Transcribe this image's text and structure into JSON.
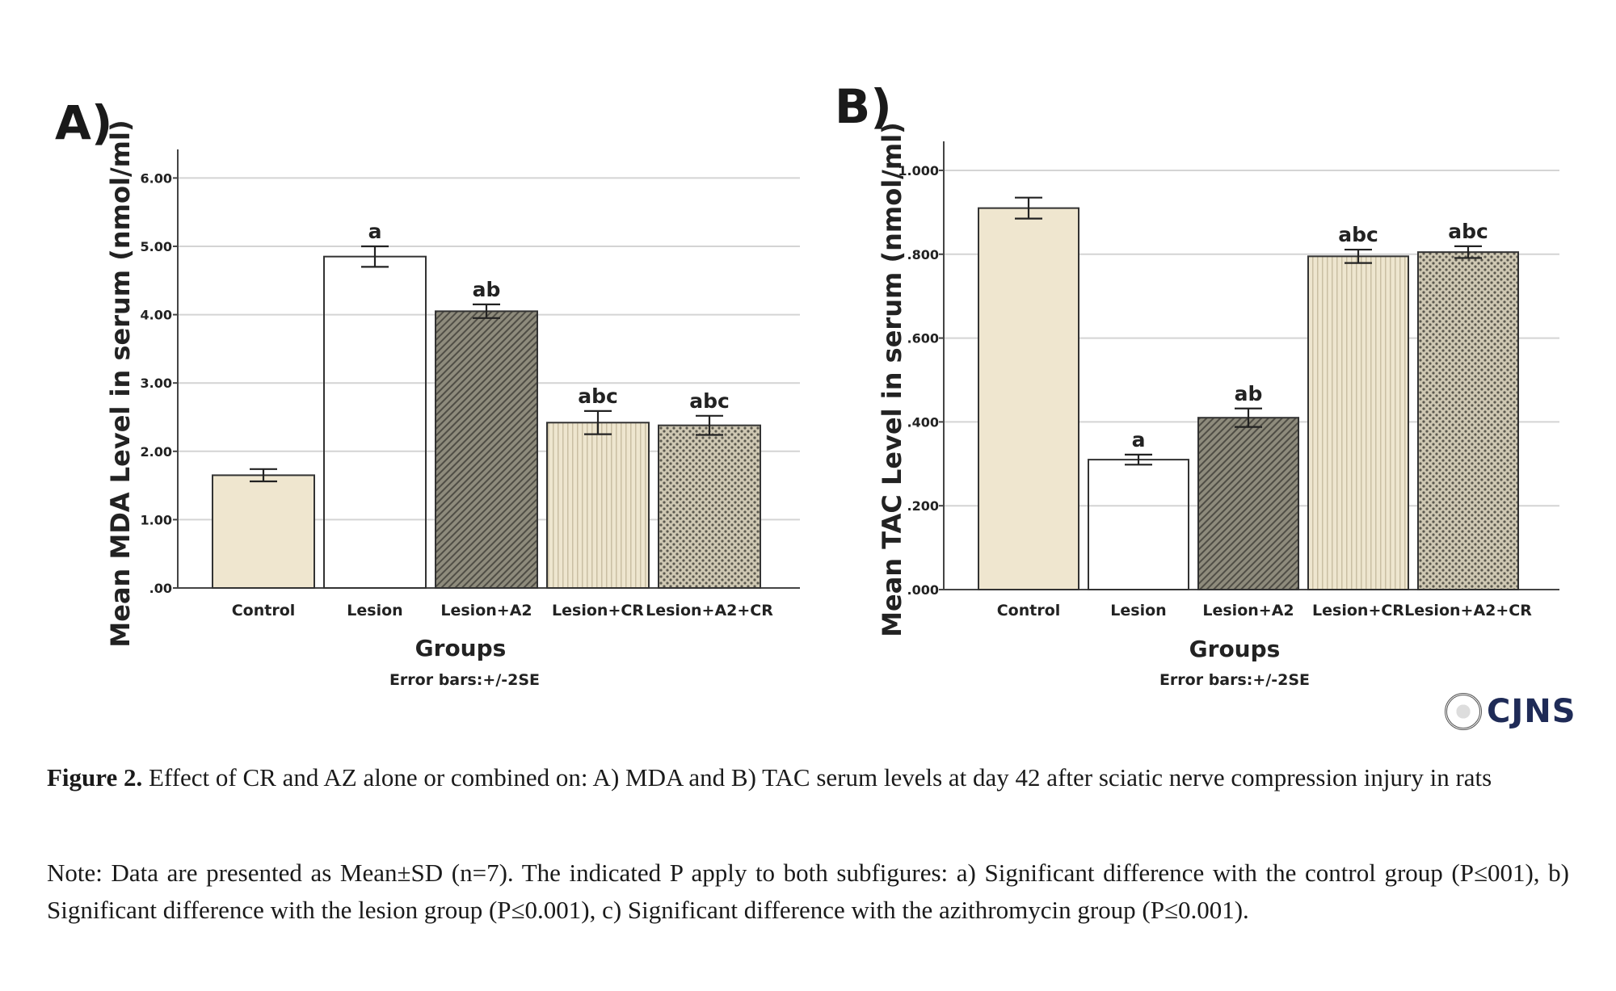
{
  "chart_data": [
    {
      "type": "bar",
      "panel_label": "A)",
      "categories": [
        "Control",
        "Lesion",
        "Lesion+A2",
        "Lesion+CR",
        "Lesion+A2+CR"
      ],
      "values": [
        1.65,
        4.85,
        4.05,
        2.42,
        2.38
      ],
      "errors": [
        0.09,
        0.15,
        0.1,
        0.17,
        0.14
      ],
      "significance": [
        "",
        "a",
        "ab",
        "abc",
        "abc"
      ],
      "patterns": [
        "plain",
        "dark-check",
        "diag",
        "vstripe",
        "dots"
      ],
      "fill_colors": [
        "#efe6cf",
        "#3a3d44",
        "#8a8778",
        "#ece3cc",
        "#b8b09c"
      ],
      "yticks": [
        ".00",
        "1.00",
        "2.00",
        "3.00",
        "4.00",
        "5.00",
        "6.00"
      ],
      "ylim": [
        0,
        6.3
      ],
      "ylabel": "Mean MDA Level in serum (nmol/ml)",
      "xlabel": "Groups",
      "note": "Error bars:+/-2SE",
      "grid": true
    },
    {
      "type": "bar",
      "panel_label": "B)",
      "categories": [
        "Control",
        "Lesion",
        "Lesion+A2",
        "Lesion+CR",
        "Lesion+A2+CR"
      ],
      "values": [
        0.91,
        0.31,
        0.41,
        0.795,
        0.805
      ],
      "errors": [
        0.025,
        0.012,
        0.022,
        0.016,
        0.014
      ],
      "significance": [
        "",
        "a",
        "ab",
        "abc",
        "abc"
      ],
      "patterns": [
        "plain",
        "dark-check",
        "diag",
        "vstripe",
        "dots"
      ],
      "fill_colors": [
        "#efe6cf",
        "#3a3d44",
        "#8a8778",
        "#ece3cc",
        "#b8b09c"
      ],
      "yticks": [
        ".000",
        ".200",
        ".400",
        ".600",
        ".800",
        "1.000"
      ],
      "ylim": [
        0,
        1.05
      ],
      "ylabel": "Mean TAC Level in serum (nmol/ml)",
      "xlabel": "Groups",
      "note": "Error bars:+/-2SE",
      "grid": true
    }
  ],
  "logo": {
    "text": "CJNS"
  },
  "caption": {
    "figure_label": "Figure 2.",
    "figure_text": "Effect of CR and AZ alone or combined on: A) MDA and B) TAC serum levels at day 42 after sciatic nerve compression injury in rats",
    "note": "Note: Data are presented as Mean±SD (n=7). The indicated P apply to both subfigures: a) Significant difference with the control group (P≤001), b) Significant difference with the lesion group (P≤0.001), c) Significant difference with the azithromycin group (P≤0.001)."
  }
}
